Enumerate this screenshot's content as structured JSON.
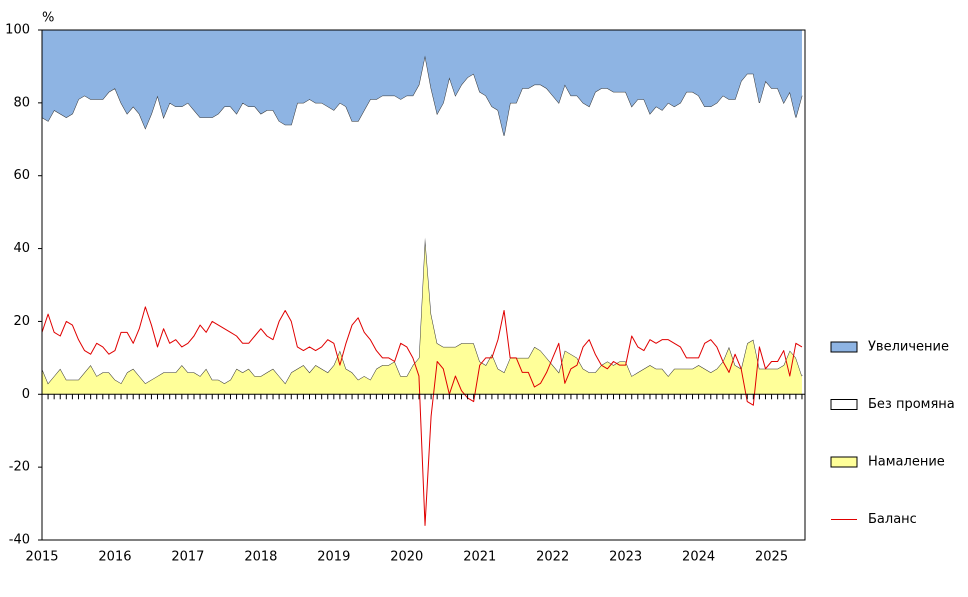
{
  "chart_data": {
    "type": "stacked_area",
    "y_unit": "%",
    "ylim": [
      -40,
      100
    ],
    "yticks": [
      -40,
      -20,
      0,
      20,
      40,
      60,
      80,
      100
    ],
    "categories": [
      "2015",
      null,
      null,
      null,
      null,
      null,
      null,
      null,
      null,
      null,
      null,
      null,
      "2016",
      null,
      null,
      null,
      null,
      null,
      null,
      null,
      null,
      null,
      null,
      null,
      "2017",
      null,
      null,
      null,
      null,
      null,
      null,
      null,
      null,
      null,
      null,
      null,
      "2018",
      null,
      null,
      null,
      null,
      null,
      null,
      null,
      null,
      null,
      null,
      null,
      "2019",
      null,
      null,
      null,
      null,
      null,
      null,
      null,
      null,
      null,
      null,
      null,
      "2020",
      null,
      null,
      null,
      null,
      null,
      null,
      null,
      null,
      null,
      null,
      null,
      "2021",
      null,
      null,
      null,
      null,
      null,
      null,
      null,
      null,
      null,
      null,
      null,
      "2022",
      null,
      null,
      null,
      null,
      null,
      null,
      null,
      null,
      null,
      null,
      null,
      "2023",
      null,
      null,
      null,
      null,
      null,
      null,
      null,
      null,
      null,
      null,
      null,
      "2024",
      null,
      null,
      null,
      null,
      null,
      null,
      null,
      null,
      null,
      null,
      null,
      "2025",
      null,
      null,
      null,
      null,
      null
    ],
    "series": [
      {
        "name": "Намаление",
        "color": "#ffff99",
        "stack": true,
        "values": [
          7,
          3,
          5,
          7,
          4,
          4,
          4,
          6,
          8,
          5,
          6,
          6,
          4,
          3,
          6,
          7,
          5,
          3,
          4,
          5,
          6,
          6,
          6,
          8,
          6,
          6,
          5,
          7,
          4,
          4,
          3,
          4,
          7,
          6,
          7,
          5,
          5,
          6,
          7,
          5,
          3,
          6,
          7,
          8,
          6,
          8,
          7,
          6,
          8,
          12,
          7,
          6,
          4,
          5,
          4,
          7,
          8,
          8,
          9,
          5,
          5,
          8,
          10,
          43,
          22,
          14,
          13,
          13,
          13,
          14,
          14,
          14,
          9,
          8,
          11,
          7,
          6,
          10,
          10,
          10,
          10,
          13,
          12,
          10,
          8,
          6,
          12,
          11,
          10,
          7,
          6,
          6,
          8,
          9,
          8,
          9,
          9,
          5,
          6,
          7,
          8,
          7,
          7,
          5,
          7,
          7,
          7,
          7,
          8,
          7,
          6,
          7,
          9,
          13,
          8,
          7,
          14,
          15,
          7,
          7,
          7,
          7,
          8,
          12,
          10,
          5
        ]
      },
      {
        "name": "Без промяна",
        "color": "#ffffff",
        "stack": true,
        "values": [
          69,
          72,
          73,
          70,
          72,
          73,
          77,
          76,
          73,
          76,
          75,
          77,
          80,
          77,
          71,
          72,
          72,
          70,
          73,
          77,
          70,
          74,
          73,
          71,
          74,
          72,
          71,
          69,
          72,
          73,
          76,
          75,
          70,
          74,
          72,
          74,
          72,
          72,
          71,
          70,
          71,
          68,
          73,
          72,
          75,
          72,
          73,
          73,
          70,
          68,
          72,
          69,
          71,
          73,
          77,
          74,
          74,
          74,
          73,
          76,
          77,
          74,
          75,
          50,
          62,
          63,
          67,
          74,
          69,
          71,
          73,
          74,
          74,
          74,
          68,
          71,
          65,
          70,
          70,
          74,
          74,
          72,
          73,
          74,
          74,
          74,
          73,
          71,
          72,
          73,
          73,
          77,
          76,
          75,
          75,
          74,
          74,
          74,
          75,
          74,
          69,
          72,
          71,
          75,
          72,
          73,
          76,
          76,
          74,
          72,
          73,
          73,
          73,
          68,
          73,
          79,
          74,
          73,
          73,
          79,
          77,
          77,
          72,
          71,
          66,
          77
        ]
      },
      {
        "name": "Увеличение",
        "color": "#8eb4e3",
        "stack": true,
        "values": [
          24,
          25,
          22,
          23,
          24,
          23,
          19,
          18,
          19,
          19,
          19,
          17,
          16,
          20,
          23,
          21,
          23,
          27,
          23,
          18,
          24,
          20,
          21,
          21,
          20,
          22,
          24,
          24,
          24,
          23,
          21,
          21,
          23,
          20,
          21,
          21,
          23,
          22,
          22,
          25,
          26,
          26,
          20,
          20,
          19,
          20,
          20,
          21,
          22,
          20,
          21,
          25,
          25,
          22,
          19,
          19,
          18,
          18,
          18,
          19,
          18,
          18,
          15,
          7,
          16,
          23,
          20,
          13,
          18,
          15,
          13,
          12,
          17,
          18,
          21,
          22,
          29,
          20,
          20,
          16,
          16,
          15,
          15,
          16,
          18,
          20,
          15,
          18,
          18,
          20,
          21,
          17,
          16,
          16,
          17,
          17,
          17,
          21,
          19,
          19,
          23,
          21,
          22,
          20,
          21,
          20,
          17,
          17,
          18,
          21,
          21,
          20,
          18,
          19,
          19,
          14,
          12,
          12,
          20,
          14,
          16,
          16,
          20,
          17,
          24,
          18
        ]
      },
      {
        "name": "Баланс",
        "color": "#e00000",
        "stack": false,
        "values": [
          17,
          22,
          17,
          16,
          20,
          19,
          15,
          12,
          11,
          14,
          13,
          11,
          12,
          17,
          17,
          14,
          18,
          24,
          19,
          13,
          18,
          14,
          15,
          13,
          14,
          16,
          19,
          17,
          20,
          19,
          18,
          17,
          16,
          14,
          14,
          16,
          18,
          16,
          15,
          20,
          23,
          20,
          13,
          12,
          13,
          12,
          13,
          15,
          14,
          8,
          14,
          19,
          21,
          17,
          15,
          12,
          10,
          10,
          9,
          14,
          13,
          10,
          5,
          -36,
          -6,
          9,
          7,
          0,
          5,
          1,
          -1,
          -2,
          8,
          10,
          10,
          15,
          23,
          10,
          10,
          6,
          6,
          2,
          3,
          6,
          10,
          14,
          3,
          7,
          8,
          13,
          15,
          11,
          8,
          7,
          9,
          8,
          8,
          16,
          13,
          12,
          15,
          14,
          15,
          15,
          14,
          13,
          10,
          10,
          10,
          14,
          15,
          13,
          9,
          6,
          11,
          7,
          -2,
          -3,
          13,
          7,
          9,
          9,
          12,
          5,
          14,
          13
        ]
      }
    ],
    "legend_order": [
      2,
      1,
      0,
      3
    ]
  }
}
